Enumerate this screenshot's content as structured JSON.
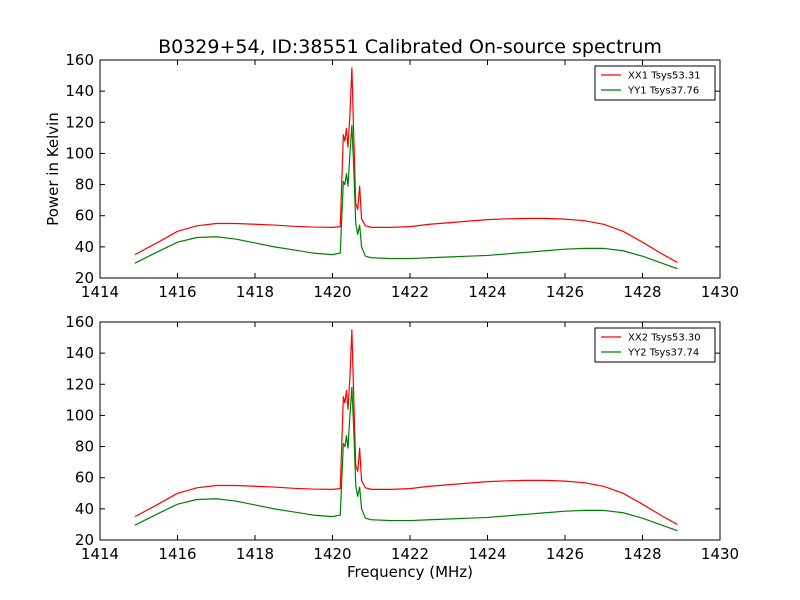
{
  "figure": {
    "title": "B0329+54, ID:38551 Calibrated On-source spectrum"
  },
  "chart_data": [
    {
      "type": "line",
      "ylabel": "Power in Kelvin",
      "xlabel": "",
      "xlim": [
        1414,
        1430
      ],
      "ylim": [
        20,
        160
      ],
      "xticks": [
        1414,
        1416,
        1418,
        1420,
        1422,
        1424,
        1426,
        1428,
        1430
      ],
      "yticks": [
        20,
        40,
        60,
        80,
        100,
        120,
        140,
        160
      ],
      "legend_position": "top-right",
      "grid": false,
      "series": [
        {
          "name": "XX1 Tsys53.31",
          "color": "#ff0000",
          "points": [
            [
              1414.9,
              35
            ],
            [
              1415.5,
              43
            ],
            [
              1416.0,
              50
            ],
            [
              1416.5,
              53.5
            ],
            [
              1417.0,
              55
            ],
            [
              1417.5,
              55
            ],
            [
              1418.0,
              54.5
            ],
            [
              1418.5,
              54
            ],
            [
              1419.0,
              53.2
            ],
            [
              1419.5,
              52.7
            ],
            [
              1420.0,
              52.5
            ],
            [
              1420.2,
              53
            ],
            [
              1420.28,
              112
            ],
            [
              1420.32,
              108
            ],
            [
              1420.36,
              116
            ],
            [
              1420.4,
              104
            ],
            [
              1420.45,
              125
            ],
            [
              1420.5,
              155
            ],
            [
              1420.55,
              110
            ],
            [
              1420.6,
              68
            ],
            [
              1420.65,
              64
            ],
            [
              1420.7,
              79
            ],
            [
              1420.75,
              58
            ],
            [
              1420.85,
              53.5
            ],
            [
              1421.0,
              52.5
            ],
            [
              1421.5,
              52.5
            ],
            [
              1422.0,
              53
            ],
            [
              1422.5,
              54.5
            ],
            [
              1423.0,
              55.5
            ],
            [
              1423.5,
              56.5
            ],
            [
              1424.0,
              57.5
            ],
            [
              1424.5,
              58
            ],
            [
              1425.0,
              58.3
            ],
            [
              1425.5,
              58.3
            ],
            [
              1426.0,
              57.8
            ],
            [
              1426.5,
              56.8
            ],
            [
              1427.0,
              54.5
            ],
            [
              1427.5,
              50
            ],
            [
              1428.0,
              43
            ],
            [
              1428.5,
              35.5
            ],
            [
              1428.9,
              30
            ]
          ]
        },
        {
          "name": "YY1 Tsys37.76",
          "color": "#008000",
          "points": [
            [
              1414.9,
              29.5
            ],
            [
              1415.5,
              37
            ],
            [
              1416.0,
              43
            ],
            [
              1416.5,
              46
            ],
            [
              1417.0,
              46.5
            ],
            [
              1417.5,
              45
            ],
            [
              1418.0,
              42.5
            ],
            [
              1418.5,
              40
            ],
            [
              1419.0,
              38
            ],
            [
              1419.5,
              36
            ],
            [
              1420.0,
              35
            ],
            [
              1420.2,
              36
            ],
            [
              1420.28,
              82
            ],
            [
              1420.32,
              80
            ],
            [
              1420.36,
              87
            ],
            [
              1420.4,
              79
            ],
            [
              1420.45,
              100
            ],
            [
              1420.5,
              118
            ],
            [
              1420.55,
              90
            ],
            [
              1420.6,
              55
            ],
            [
              1420.65,
              48
            ],
            [
              1420.7,
              54
            ],
            [
              1420.75,
              40
            ],
            [
              1420.85,
              34
            ],
            [
              1421.0,
              33
            ],
            [
              1421.5,
              32.5
            ],
            [
              1422.0,
              32.5
            ],
            [
              1422.5,
              33
            ],
            [
              1423.0,
              33.5
            ],
            [
              1423.5,
              34
            ],
            [
              1424.0,
              34.5
            ],
            [
              1424.5,
              35.5
            ],
            [
              1425.0,
              36.5
            ],
            [
              1425.5,
              37.5
            ],
            [
              1426.0,
              38.5
            ],
            [
              1426.5,
              39
            ],
            [
              1427.0,
              39
            ],
            [
              1427.5,
              37.5
            ],
            [
              1428.0,
              34
            ],
            [
              1428.5,
              29.5
            ],
            [
              1428.9,
              26
            ]
          ]
        }
      ]
    },
    {
      "type": "line",
      "ylabel": "",
      "xlabel": "Frequency (MHz)",
      "xlim": [
        1414,
        1430
      ],
      "ylim": [
        20,
        160
      ],
      "xticks": [
        1414,
        1416,
        1418,
        1420,
        1422,
        1424,
        1426,
        1428,
        1430
      ],
      "yticks": [
        20,
        40,
        60,
        80,
        100,
        120,
        140,
        160
      ],
      "legend_position": "top-right",
      "grid": false,
      "series": [
        {
          "name": "XX2 Tsys53.30",
          "color": "#ff0000",
          "points": [
            [
              1414.9,
              35
            ],
            [
              1415.5,
              43
            ],
            [
              1416.0,
              50
            ],
            [
              1416.5,
              53.5
            ],
            [
              1417.0,
              55
            ],
            [
              1417.5,
              55
            ],
            [
              1418.0,
              54.5
            ],
            [
              1418.5,
              54
            ],
            [
              1419.0,
              53.2
            ],
            [
              1419.5,
              52.7
            ],
            [
              1420.0,
              52.5
            ],
            [
              1420.2,
              53
            ],
            [
              1420.28,
              112
            ],
            [
              1420.32,
              108
            ],
            [
              1420.36,
              116
            ],
            [
              1420.4,
              104
            ],
            [
              1420.45,
              125
            ],
            [
              1420.5,
              155
            ],
            [
              1420.55,
              110
            ],
            [
              1420.6,
              68
            ],
            [
              1420.65,
              64
            ],
            [
              1420.7,
              79
            ],
            [
              1420.75,
              58
            ],
            [
              1420.85,
              53.5
            ],
            [
              1421.0,
              52.5
            ],
            [
              1421.5,
              52.5
            ],
            [
              1422.0,
              53
            ],
            [
              1422.5,
              54.5
            ],
            [
              1423.0,
              55.5
            ],
            [
              1423.5,
              56.5
            ],
            [
              1424.0,
              57.5
            ],
            [
              1424.5,
              58
            ],
            [
              1425.0,
              58.3
            ],
            [
              1425.5,
              58.3
            ],
            [
              1426.0,
              57.8
            ],
            [
              1426.5,
              56.8
            ],
            [
              1427.0,
              54.5
            ],
            [
              1427.5,
              50
            ],
            [
              1428.0,
              43
            ],
            [
              1428.5,
              35.5
            ],
            [
              1428.9,
              30
            ]
          ]
        },
        {
          "name": "YY2 Tsys37.74",
          "color": "#008000",
          "points": [
            [
              1414.9,
              29.5
            ],
            [
              1415.5,
              37
            ],
            [
              1416.0,
              43
            ],
            [
              1416.5,
              46
            ],
            [
              1417.0,
              46.5
            ],
            [
              1417.5,
              45
            ],
            [
              1418.0,
              42.5
            ],
            [
              1418.5,
              40
            ],
            [
              1419.0,
              38
            ],
            [
              1419.5,
              36
            ],
            [
              1420.0,
              35
            ],
            [
              1420.2,
              36
            ],
            [
              1420.28,
              82
            ],
            [
              1420.32,
              80
            ],
            [
              1420.36,
              87
            ],
            [
              1420.4,
              79
            ],
            [
              1420.45,
              100
            ],
            [
              1420.5,
              118
            ],
            [
              1420.55,
              90
            ],
            [
              1420.6,
              55
            ],
            [
              1420.65,
              48
            ],
            [
              1420.7,
              54
            ],
            [
              1420.75,
              40
            ],
            [
              1420.85,
              34
            ],
            [
              1421.0,
              33
            ],
            [
              1421.5,
              32.5
            ],
            [
              1422.0,
              32.5
            ],
            [
              1422.5,
              33
            ],
            [
              1423.0,
              33.5
            ],
            [
              1423.5,
              34
            ],
            [
              1424.0,
              34.5
            ],
            [
              1424.5,
              35.5
            ],
            [
              1425.0,
              36.5
            ],
            [
              1425.5,
              37.5
            ],
            [
              1426.0,
              38.5
            ],
            [
              1426.5,
              39
            ],
            [
              1427.0,
              39
            ],
            [
              1427.5,
              37.5
            ],
            [
              1428.0,
              34
            ],
            [
              1428.5,
              29.5
            ],
            [
              1428.9,
              26
            ]
          ]
        }
      ]
    }
  ]
}
